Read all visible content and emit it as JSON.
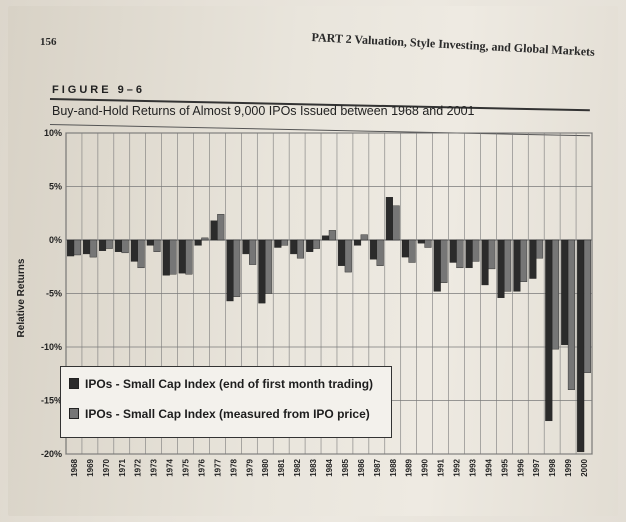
{
  "page": {
    "page_number": "156",
    "running_head": "PART 2   Valuation, Style Investing, and Global Markets",
    "figure_label": "FIGURE  9–6",
    "figure_title": "Buy-and-Hold Returns of Almost 9,000 IPOs Issued between 1968 and 2001"
  },
  "colors": {
    "series_first_month": "#2b2b2b",
    "series_ipo_price": "#767676",
    "grid": "#7a7a7a"
  },
  "chart_data": {
    "type": "bar",
    "title": "Buy-and-Hold Returns of Almost 9,000 IPOs Issued between 1968 and 2001",
    "xlabel": "",
    "ylabel": "Relative Returns",
    "ylim": [
      -20,
      10
    ],
    "yticks": [
      "10%",
      "5%",
      "0%",
      "-5%",
      "-10%",
      "-15%",
      "-20%"
    ],
    "ytick_values": [
      10,
      5,
      0,
      -5,
      -10,
      -15,
      -20
    ],
    "grid": true,
    "legend_position": "lower-left",
    "categories": [
      "1968",
      "1969",
      "1970",
      "1971",
      "1972",
      "1973",
      "1974",
      "1975",
      "1976",
      "1977",
      "1978",
      "1979",
      "1980",
      "1981",
      "1982",
      "1983",
      "1984",
      "1985",
      "1986",
      "1987",
      "1988",
      "1989",
      "1990",
      "1991",
      "1992",
      "1993",
      "1994",
      "1995",
      "1996",
      "1997",
      "1998",
      "1999",
      "2000"
    ],
    "series": [
      {
        "name": "IPOs - Small Cap Index (end of first month trading)",
        "values": [
          -1.5,
          -1.3,
          -1.0,
          -1.1,
          -2.0,
          -0.5,
          -3.3,
          -3.1,
          -0.5,
          1.8,
          -5.7,
          -1.3,
          -5.9,
          -0.7,
          -1.3,
          -1.1,
          0.4,
          -2.4,
          -0.5,
          -1.8,
          4.0,
          -1.6,
          -0.3,
          -4.8,
          -2.1,
          -2.6,
          -4.2,
          -5.4,
          -4.8,
          -3.6,
          -16.9,
          -9.8,
          -19.8
        ]
      },
      {
        "name": "IPOs - Small Cap Index (measured from IPO price)",
        "values": [
          -1.4,
          -1.6,
          -0.8,
          -1.2,
          -2.6,
          -1.1,
          -3.2,
          -3.2,
          0.2,
          2.4,
          -5.3,
          -2.3,
          -5.0,
          -0.5,
          -1.7,
          -0.8,
          0.9,
          -3.0,
          0.5,
          -2.4,
          3.2,
          -2.1,
          -0.7,
          -4.0,
          -2.6,
          -2.0,
          -2.7,
          -4.8,
          -3.9,
          -1.7,
          -10.2,
          -14.0,
          -12.4
        ]
      }
    ]
  }
}
